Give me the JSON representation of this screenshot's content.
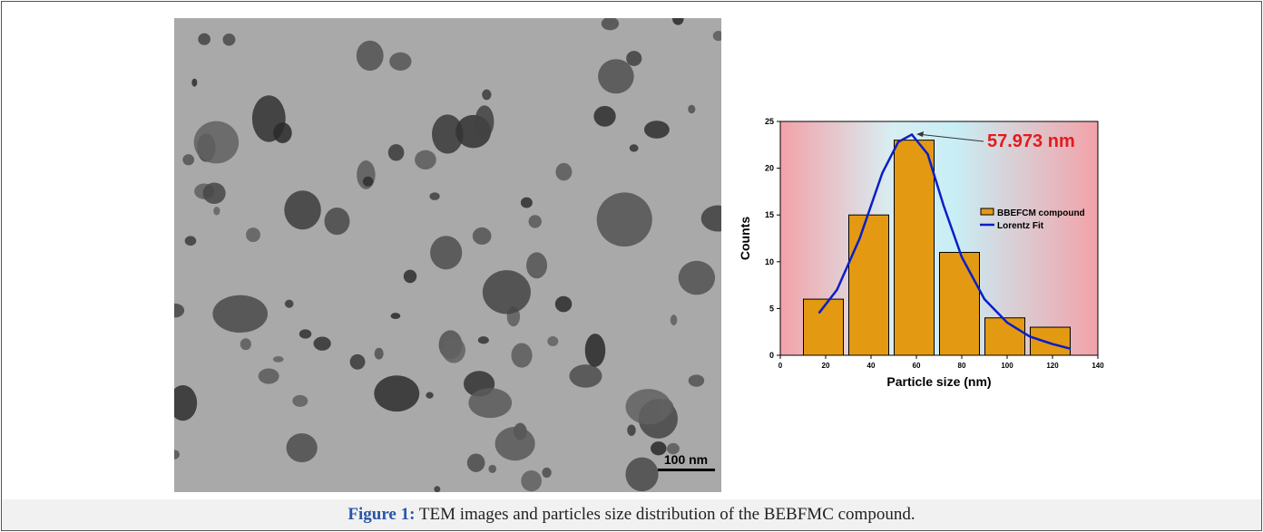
{
  "tem_image": {
    "scale_bar": "100 nm"
  },
  "chart_data": {
    "type": "bar",
    "annotation": "57.973 nm",
    "xlabel": "Particle size (nm)",
    "ylabel": "Counts",
    "xlim": [
      0,
      140
    ],
    "xticks": [
      0,
      20,
      40,
      60,
      80,
      100,
      120,
      140
    ],
    "ylim": [
      0,
      25
    ],
    "yticks": [
      0,
      5,
      10,
      15,
      20,
      25
    ],
    "series": [
      {
        "name": "BBEFCM compound",
        "type": "bar",
        "color": "#e39a12",
        "x": [
          19,
          39,
          59,
          79,
          99,
          119
        ],
        "values": [
          6,
          15,
          23,
          11,
          4,
          3
        ]
      },
      {
        "name": "Lorentz Fit",
        "type": "line",
        "color": "#0a1ec8",
        "x": [
          17,
          25,
          35,
          45,
          52,
          58,
          65,
          72,
          80,
          90,
          100,
          110,
          120,
          128
        ],
        "values": [
          4.5,
          7,
          12.5,
          19.5,
          22.8,
          23.6,
          21.5,
          16,
          10.5,
          6,
          3.5,
          2,
          1.2,
          0.7
        ]
      }
    ]
  },
  "caption": {
    "label": "Figure 1:",
    "text": "TEM images and particles size distribution of the BEBFMC compound."
  }
}
